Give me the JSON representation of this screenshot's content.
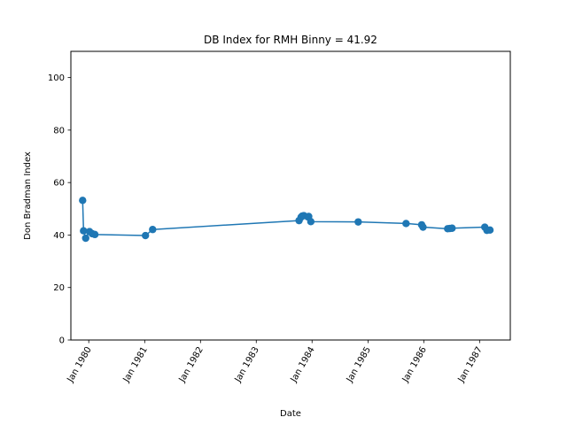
{
  "chart_data": {
    "type": "line",
    "title": "DB Index for RMH Binny = 41.92",
    "xlabel": "Date",
    "ylabel": "Don Bradman Index",
    "ylim": [
      0,
      110
    ],
    "yticks": [
      0,
      20,
      40,
      60,
      80,
      100
    ],
    "xlim": [
      "1979-09-06",
      "1987-07-21"
    ],
    "xticks": [
      {
        "date": "1980-01-01",
        "label": "Jan 1980"
      },
      {
        "date": "1981-01-01",
        "label": "Jan 1981"
      },
      {
        "date": "1982-01-01",
        "label": "Jan 1982"
      },
      {
        "date": "1983-01-01",
        "label": "Jan 1983"
      },
      {
        "date": "1984-01-01",
        "label": "Jan 1984"
      },
      {
        "date": "1985-01-01",
        "label": "Jan 1985"
      },
      {
        "date": "1986-01-01",
        "label": "Jan 1986"
      },
      {
        "date": "1987-01-01",
        "label": "Jan 1987"
      }
    ],
    "grid": false,
    "color": "#1f77b4",
    "series": [
      {
        "x": [
          "1979-11-22",
          "1979-11-28",
          "1979-12-12",
          "1980-01-06",
          "1980-01-24",
          "1980-02-10",
          "1981-01-06",
          "1981-02-22",
          "1983-10-08",
          "1983-10-21",
          "1983-10-28",
          "1983-11-08",
          "1983-12-05",
          "1983-12-10",
          "1983-12-24",
          "1984-10-29",
          "1985-09-07",
          "1985-12-18",
          "1985-12-27",
          "1986-06-06",
          "1986-06-20",
          "1986-07-05",
          "1987-02-04",
          "1987-02-18",
          "1987-03-10"
        ],
        "y": [
          53.2,
          41.6,
          38.8,
          41.3,
          40.5,
          40.2,
          39.8,
          42.1,
          45.5,
          46.8,
          47.2,
          47.4,
          46.9,
          47.1,
          45.1,
          45.0,
          44.4,
          43.9,
          43.0,
          42.4,
          42.5,
          42.6,
          43.0,
          41.8,
          41.9
        ]
      }
    ]
  }
}
